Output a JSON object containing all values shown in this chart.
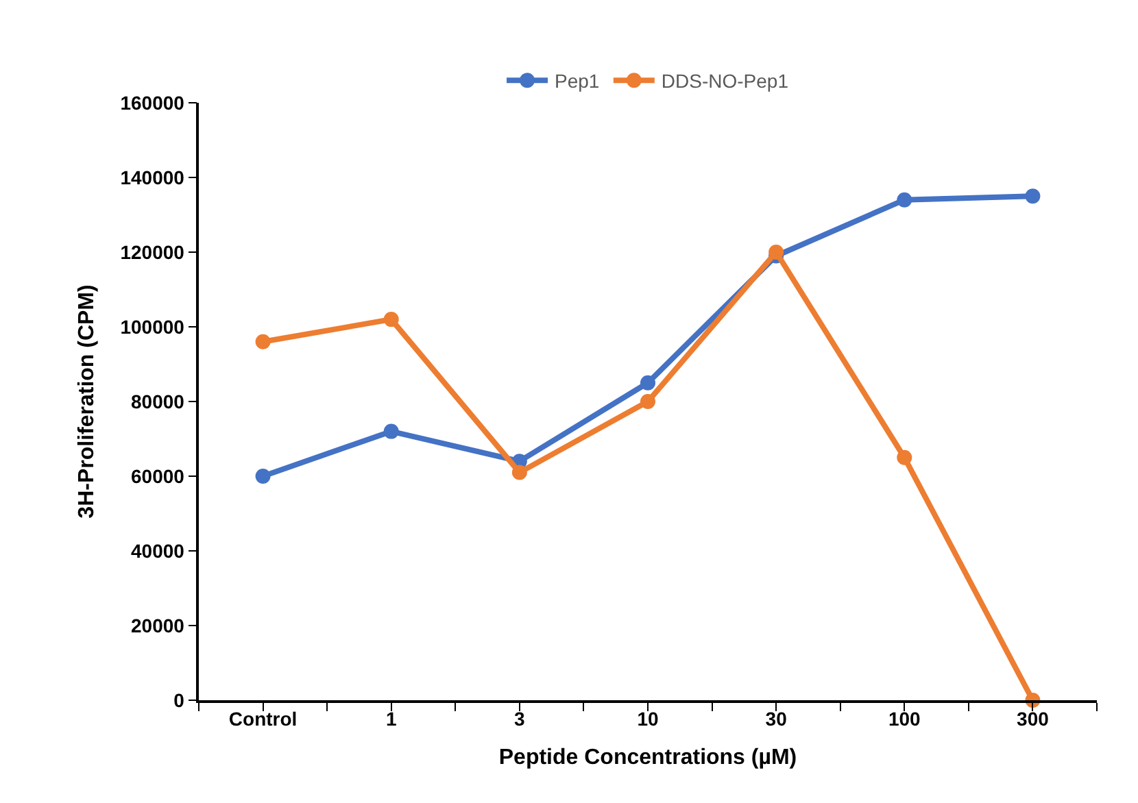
{
  "chart_data": {
    "type": "line",
    "xlabel": "Peptide Concentrations (µM)",
    "ylabel": "3H-Proliferation (CPM)",
    "categories": [
      "Control",
      "1",
      "3",
      "10",
      "30",
      "100",
      "300"
    ],
    "series": [
      {
        "name": "Pep1",
        "color": "#4472c4",
        "values": [
          60000,
          72000,
          64000,
          85000,
          119000,
          134000,
          135000
        ]
      },
      {
        "name": "DDS-NO-Pep1",
        "color": "#ed7d31",
        "values": [
          96000,
          102000,
          61000,
          80000,
          120000,
          65000,
          0
        ]
      }
    ],
    "ylim": [
      0,
      160000
    ],
    "yticks": [
      0,
      20000,
      40000,
      60000,
      80000,
      100000,
      120000,
      140000,
      160000
    ],
    "legend": "top",
    "marker": "circle",
    "line_style": "solid"
  }
}
